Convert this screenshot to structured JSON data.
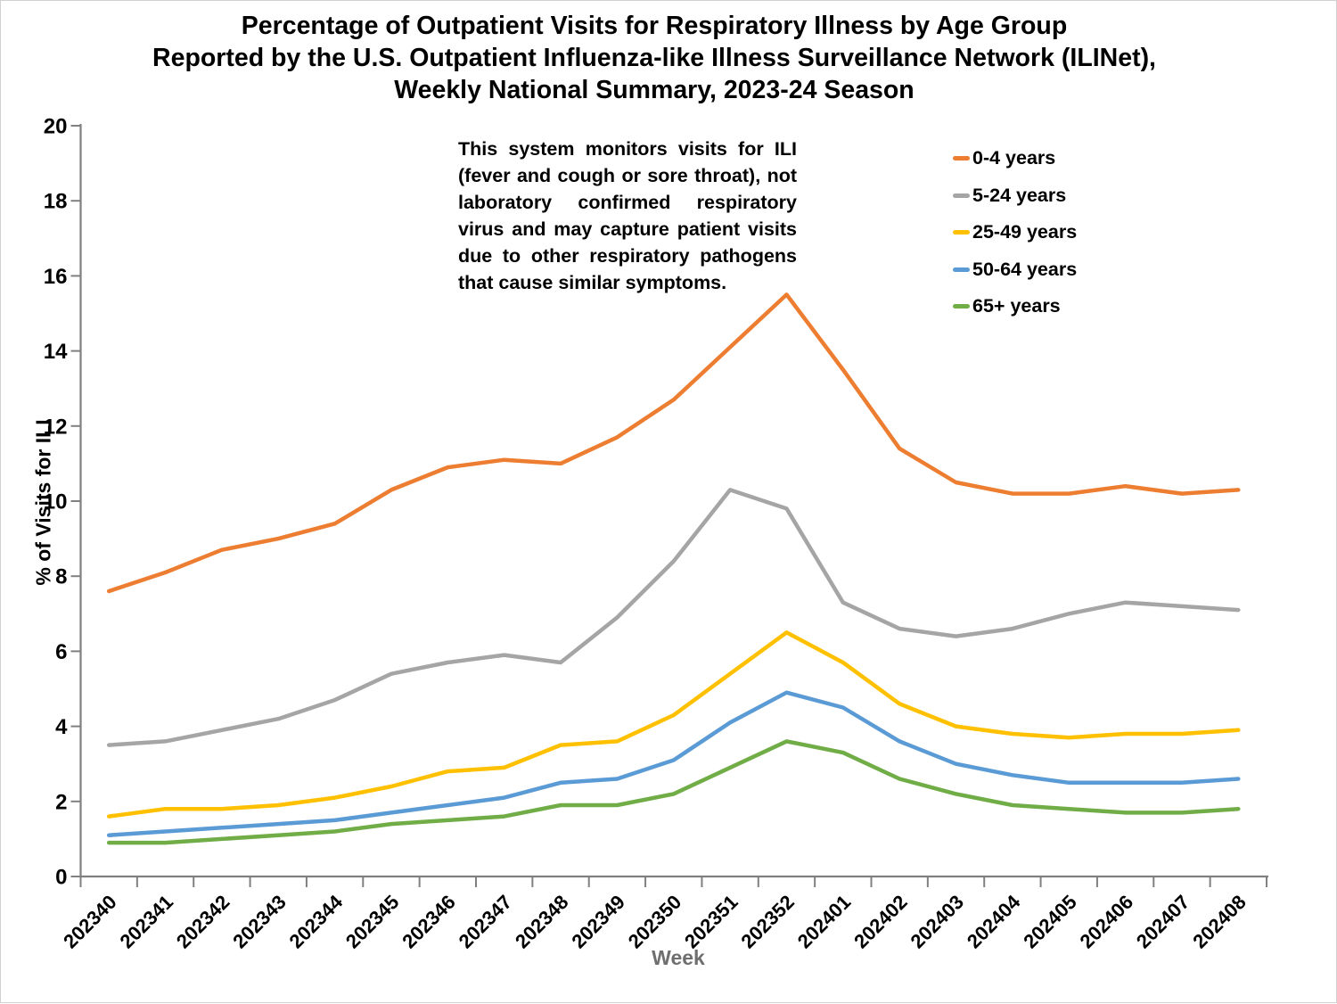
{
  "chart_data": {
    "type": "line",
    "title_lines": [
      "Percentage of Outpatient Visits for Respiratory Illness by Age Group",
      "Reported by the U.S. Outpatient Influenza-like Illness Surveillance Network (ILINet),",
      "Weekly National Summary, 2023-24 Season"
    ],
    "xlabel": "Week",
    "ylabel": "% of Visits for ILI",
    "ylim": [
      0,
      20
    ],
    "y_ticks": [
      0,
      2,
      4,
      6,
      8,
      10,
      12,
      14,
      16,
      18,
      20
    ],
    "grid": false,
    "legend_position": "right-top",
    "categories": [
      "202340",
      "202341",
      "202342",
      "202343",
      "202344",
      "202345",
      "202346",
      "202347",
      "202348",
      "202349",
      "202350",
      "202351",
      "202352",
      "202401",
      "202402",
      "202403",
      "202404",
      "202405",
      "202406",
      "202407",
      "202408"
    ],
    "series": [
      {
        "name": "0-4 years",
        "color": "#ED7D31",
        "values": [
          7.6,
          8.1,
          8.7,
          9.0,
          9.4,
          10.3,
          10.9,
          11.1,
          11.0,
          11.7,
          12.7,
          14.1,
          15.5,
          13.5,
          11.4,
          10.5,
          10.2,
          10.2,
          10.4,
          10.2,
          10.3
        ]
      },
      {
        "name": "5-24 years",
        "color": "#A5A5A5",
        "values": [
          3.5,
          3.6,
          3.9,
          4.2,
          4.7,
          5.4,
          5.7,
          5.9,
          5.7,
          6.9,
          8.4,
          10.3,
          9.8,
          7.3,
          6.6,
          6.4,
          6.6,
          7.0,
          7.3,
          7.2,
          7.1
        ]
      },
      {
        "name": "25-49 years",
        "color": "#FFC000",
        "values": [
          1.6,
          1.8,
          1.8,
          1.9,
          2.1,
          2.4,
          2.8,
          2.9,
          3.5,
          3.6,
          4.3,
          5.4,
          6.5,
          5.7,
          4.6,
          4.0,
          3.8,
          3.7,
          3.8,
          3.8,
          3.9
        ]
      },
      {
        "name": "50-64 years",
        "color": "#5B9BD5",
        "values": [
          1.1,
          1.2,
          1.3,
          1.4,
          1.5,
          1.7,
          1.9,
          2.1,
          2.5,
          2.6,
          3.1,
          4.1,
          4.9,
          4.5,
          3.6,
          3.0,
          2.7,
          2.5,
          2.5,
          2.5,
          2.6
        ]
      },
      {
        "name": "65+ years",
        "color": "#70AD47",
        "values": [
          0.9,
          0.9,
          1.0,
          1.1,
          1.2,
          1.4,
          1.5,
          1.6,
          1.9,
          1.9,
          2.2,
          2.9,
          3.6,
          3.3,
          2.6,
          2.2,
          1.9,
          1.8,
          1.7,
          1.7,
          1.8
        ]
      }
    ],
    "axis_color": "#808080",
    "tick_label_color": "#000000",
    "x_axis_title_color": "#6e6e6e"
  },
  "annotation": {
    "text": "This system monitors visits for ILI (fever and cough or sore throat), not laboratory confirmed respiratory virus and may capture patient visits due to other respiratory pathogens that cause similar symptoms."
  }
}
